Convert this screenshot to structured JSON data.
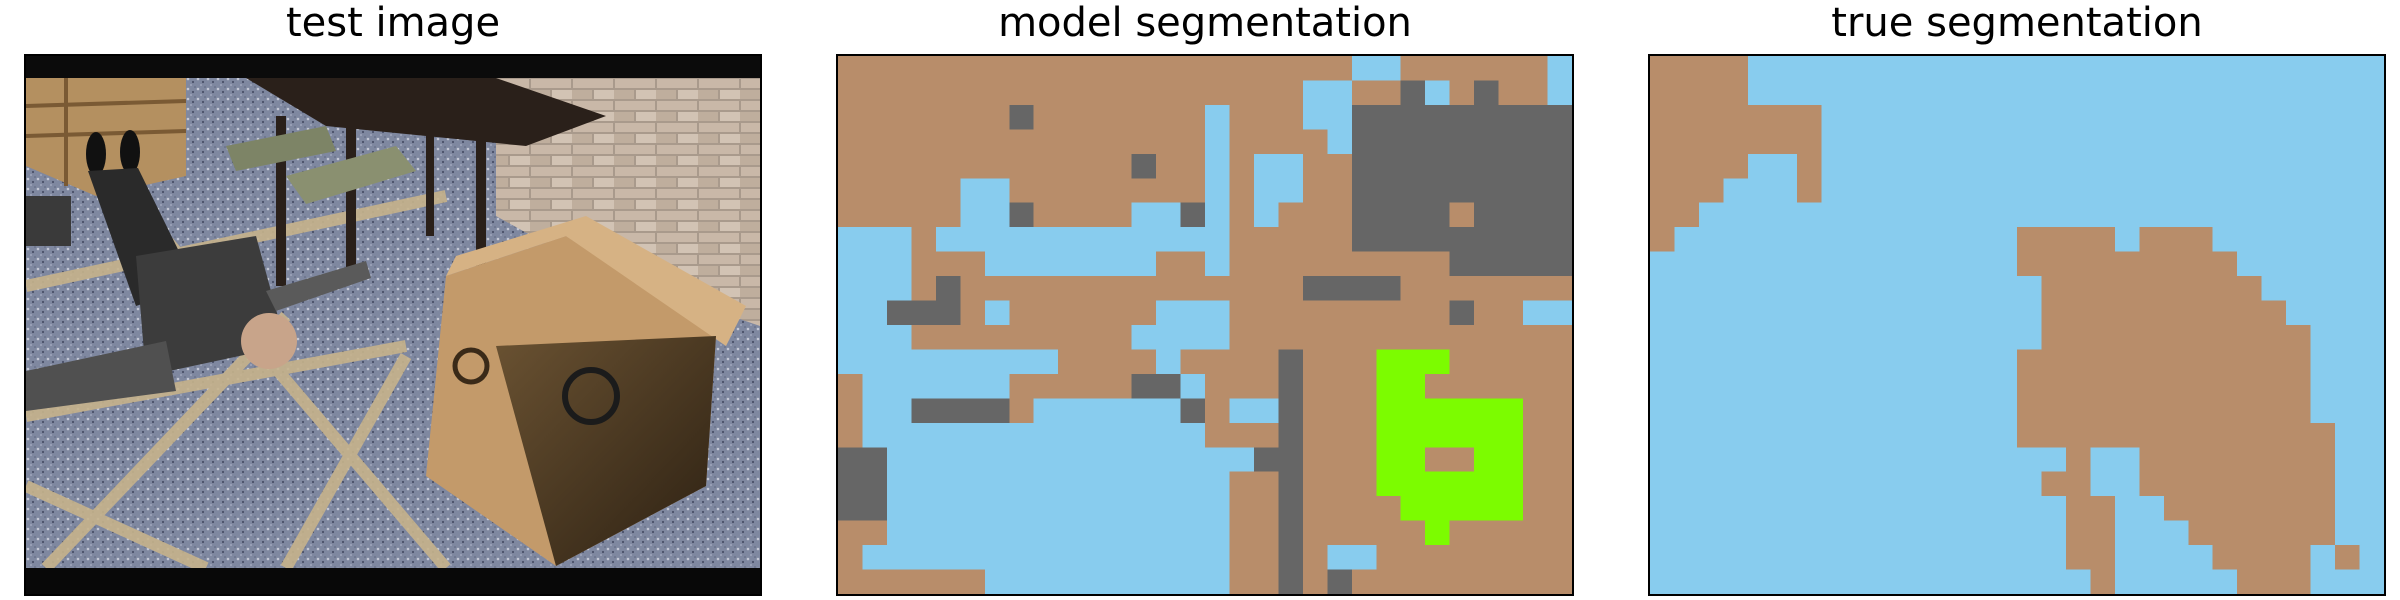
{
  "panels": {
    "test_image": {
      "title": "test image"
    },
    "model_segmentation": {
      "title": "model segmentation"
    },
    "true_segmentation": {
      "title": "true segmentation"
    }
  },
  "colors": {
    "tan": "#b88d6a",
    "sky": "#88ccee",
    "gray": "#666666",
    "green": "#7cfc00",
    "border": "#000000"
  }
}
